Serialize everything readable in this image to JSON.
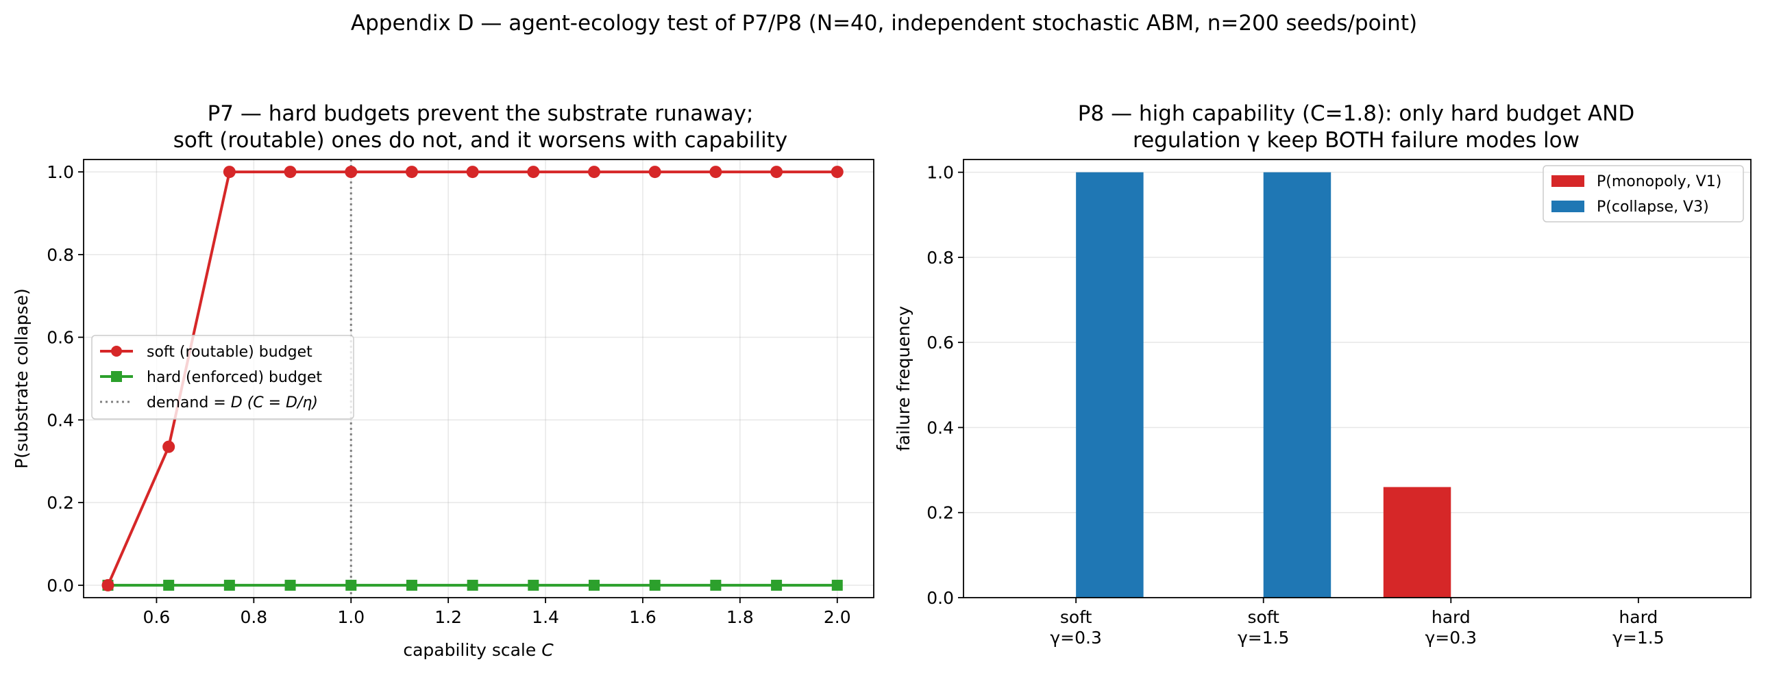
{
  "figure": {
    "suptitle": "Appendix D — agent-ecology test of P7/P8 (N=40, independent stochastic ABM, n=200 seeds/point)"
  },
  "chart_data": [
    {
      "type": "line",
      "title_lines": [
        "P7 — hard budgets prevent the substrate runaway;",
        "soft (routable) ones do not, and it worsens with capability"
      ],
      "xlabel_text": "capability scale ",
      "xlabel_var": "C",
      "ylabel": "P(substrate collapse)",
      "xlim": [
        0.45,
        2.075
      ],
      "ylim": [
        -0.03,
        1.03
      ],
      "xticks": [
        "0.6",
        "0.8",
        "1.0",
        "1.2",
        "1.4",
        "1.6",
        "1.8",
        "2.0"
      ],
      "yticks": [
        "0.0",
        "0.2",
        "0.4",
        "0.6",
        "0.8",
        "1.0"
      ],
      "grid": true,
      "legend_position": "center-left",
      "x": [
        0.5,
        0.625,
        0.75,
        0.875,
        1.0,
        1.125,
        1.25,
        1.375,
        1.5,
        1.625,
        1.75,
        1.875,
        2.0
      ],
      "series": [
        {
          "name": "soft (routable) budget",
          "color": "#d62728",
          "marker": "circle",
          "values": [
            0.0,
            0.335,
            1.0,
            1.0,
            1.0,
            1.0,
            1.0,
            1.0,
            1.0,
            1.0,
            1.0,
            1.0,
            1.0
          ]
        },
        {
          "name": "hard (enforced) budget",
          "color": "#2ca02c",
          "marker": "square",
          "values": [
            0,
            0,
            0,
            0,
            0,
            0,
            0,
            0,
            0,
            0,
            0,
            0,
            0
          ]
        }
      ],
      "reference_line": {
        "x": 1.0,
        "color": "#808080",
        "legend_prefix": "demand  ",
        "legend_math": "= D (C = D/η)"
      }
    },
    {
      "type": "bar",
      "title_lines": [
        "P8 — high capability (C=1.8): only hard budget AND",
        "regulation γ keep BOTH failure modes low"
      ],
      "ylabel": "failure frequency",
      "ylim": [
        0,
        1.03
      ],
      "yticks": [
        "0.0",
        "0.2",
        "0.4",
        "0.6",
        "0.8",
        "1.0"
      ],
      "grid": true,
      "legend_position": "top-right",
      "categories": [
        {
          "line1": "soft",
          "line2": "γ=0.3"
        },
        {
          "line1": "soft",
          "line2": "γ=1.5"
        },
        {
          "line1": "hard",
          "line2": "γ=0.3"
        },
        {
          "line1": "hard",
          "line2": "γ=1.5"
        }
      ],
      "series": [
        {
          "name": "P(monopoly, V1)",
          "color": "#d62728",
          "values": [
            0.0,
            0.0,
            0.26,
            0.0
          ]
        },
        {
          "name": "P(collapse, V3)",
          "color": "#1f77b4",
          "values": [
            1.0,
            1.0,
            0.0,
            0.0
          ]
        }
      ]
    }
  ]
}
